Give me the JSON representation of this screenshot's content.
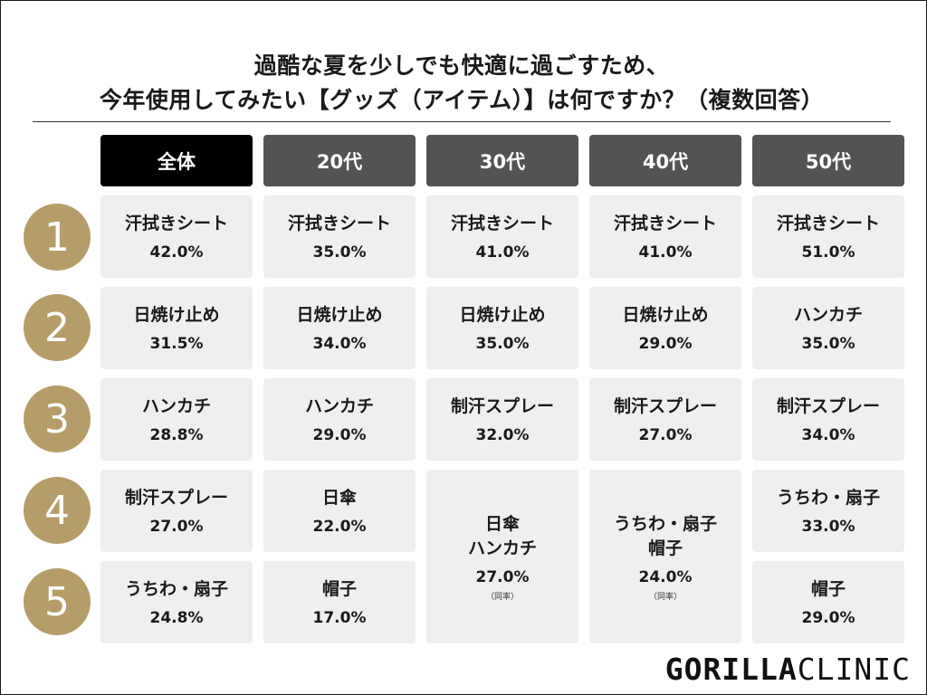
{
  "title": {
    "line1": "過酷な夏を少しでも快適に過ごすため、",
    "line2": "今年使用してみたい【グッズ（アイテム）】は何ですか？（複数回答）"
  },
  "columns": [
    "全体",
    "20代",
    "30代",
    "40代",
    "50代"
  ],
  "ranks": [
    "1",
    "2",
    "3",
    "4",
    "5"
  ],
  "cells": {
    "all": [
      {
        "item": "汗拭きシート",
        "pct": "42.0%"
      },
      {
        "item": "日焼け止め",
        "pct": "31.5%"
      },
      {
        "item": "ハンカチ",
        "pct": "28.8%"
      },
      {
        "item": "制汗スプレー",
        "pct": "27.0%"
      },
      {
        "item": "うちわ・扇子",
        "pct": "24.8%"
      }
    ],
    "age20": [
      {
        "item": "汗拭きシート",
        "pct": "35.0%"
      },
      {
        "item": "日焼け止め",
        "pct": "34.0%"
      },
      {
        "item": "ハンカチ",
        "pct": "29.0%"
      },
      {
        "item": "日傘",
        "pct": "22.0%"
      },
      {
        "item": "帽子",
        "pct": "17.0%"
      }
    ],
    "age30": [
      {
        "item": "汗拭きシート",
        "pct": "41.0%"
      },
      {
        "item": "日焼け止め",
        "pct": "35.0%"
      },
      {
        "item": "制汗スプレー",
        "pct": "32.0%"
      },
      {
        "item1": "日傘",
        "item2": "ハンカチ",
        "pct": "27.0%",
        "note": "（同率）"
      }
    ],
    "age40": [
      {
        "item": "汗拭きシート",
        "pct": "41.0%"
      },
      {
        "item": "日焼け止め",
        "pct": "29.0%"
      },
      {
        "item": "制汗スプレー",
        "pct": "27.0%"
      },
      {
        "item1": "うちわ・扇子",
        "item2": "帽子",
        "pct": "24.0%",
        "note": "（同率）"
      }
    ],
    "age50": [
      {
        "item": "汗拭きシート",
        "pct": "51.0%"
      },
      {
        "item": "ハンカチ",
        "pct": "35.0%"
      },
      {
        "item": "制汗スプレー",
        "pct": "34.0%"
      },
      {
        "item": "うちわ・扇子",
        "pct": "33.0%"
      },
      {
        "item": "帽子",
        "pct": "29.0%"
      }
    ]
  },
  "logo": {
    "bold": "GORILLA",
    "light": "CLINIC"
  },
  "colors": {
    "rank_circle": "#b59d6a",
    "header_all": "#000000",
    "header_age": "#535353",
    "cell_bg": "#efefef"
  }
}
